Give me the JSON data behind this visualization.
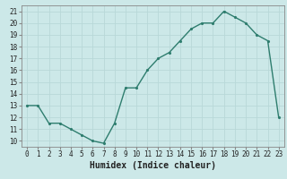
{
  "x": [
    0,
    1,
    2,
    3,
    4,
    5,
    6,
    7,
    8,
    9,
    10,
    11,
    12,
    13,
    14,
    15,
    16,
    17,
    18,
    19,
    20,
    21,
    22,
    23
  ],
  "y": [
    13,
    13,
    11.5,
    11.5,
    11,
    10.5,
    10,
    9.8,
    11.5,
    14.5,
    14.5,
    16,
    17,
    17.5,
    18.5,
    19.5,
    20,
    20,
    21,
    20.5,
    20,
    19,
    18.5,
    12
  ],
  "line_color": "#2e7d6e",
  "marker_color": "#2e7d6e",
  "bg_color": "#cce8e8",
  "grid_color": "#b8d8d8",
  "xlabel": "Humidex (Indice chaleur)",
  "ylim": [
    9.5,
    21.5
  ],
  "xlim": [
    -0.5,
    23.5
  ],
  "yticks": [
    10,
    11,
    12,
    13,
    14,
    15,
    16,
    17,
    18,
    19,
    20,
    21
  ],
  "xticks": [
    0,
    1,
    2,
    3,
    4,
    5,
    6,
    7,
    8,
    9,
    10,
    11,
    12,
    13,
    14,
    15,
    16,
    17,
    18,
    19,
    20,
    21,
    22,
    23
  ],
  "tick_fontsize": 5.5,
  "xlabel_fontsize": 7,
  "marker_size": 2.5,
  "line_width": 1.0
}
